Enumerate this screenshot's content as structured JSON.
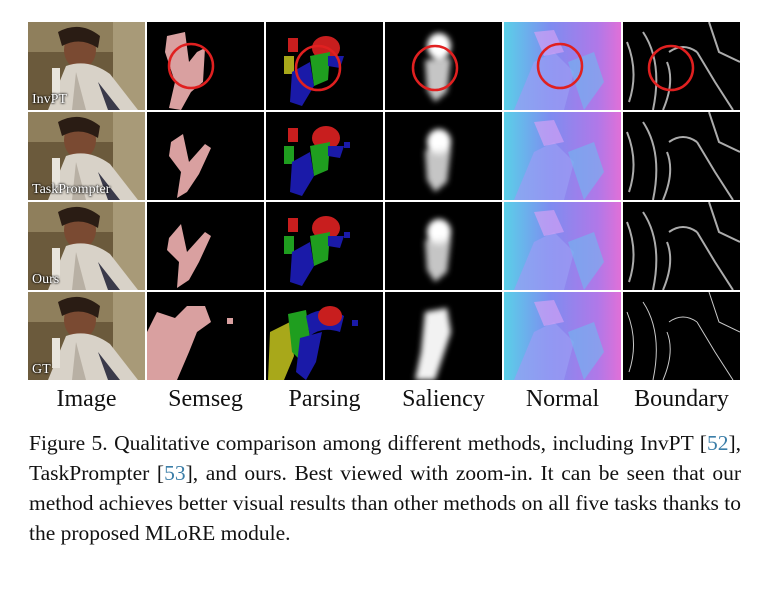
{
  "figure": {
    "rows": [
      {
        "label": "InvPT",
        "circled": true
      },
      {
        "label": "TaskPrompter",
        "circled": false
      },
      {
        "label": "Ours",
        "circled": false
      },
      {
        "label": "GT",
        "circled": false
      }
    ],
    "columns": [
      "Image",
      "Semseg",
      "Parsing",
      "Saliency",
      "Normal",
      "Boundary"
    ],
    "colors": {
      "highlight_circle": "#e02020",
      "semseg_person": "#d9a0a0",
      "parsing_head": "#c81e1e",
      "parsing_torso": "#1f9e1f",
      "parsing_arms": "#1a1aa8",
      "parsing_other": "#a8a81a",
      "normal_base": "#7f8cf0"
    }
  },
  "caption": {
    "prefix": "Figure 5.  Qualitative comparison among different methods, including InvPT [",
    "ref1": "52",
    "mid1": "], TaskPrompter [",
    "ref2": "53",
    "suffix": "], and ours.  Best viewed with zoom-in. It can be seen that our method achieves better visual results than other methods on all five tasks thanks to the proposed MLoRE module."
  }
}
